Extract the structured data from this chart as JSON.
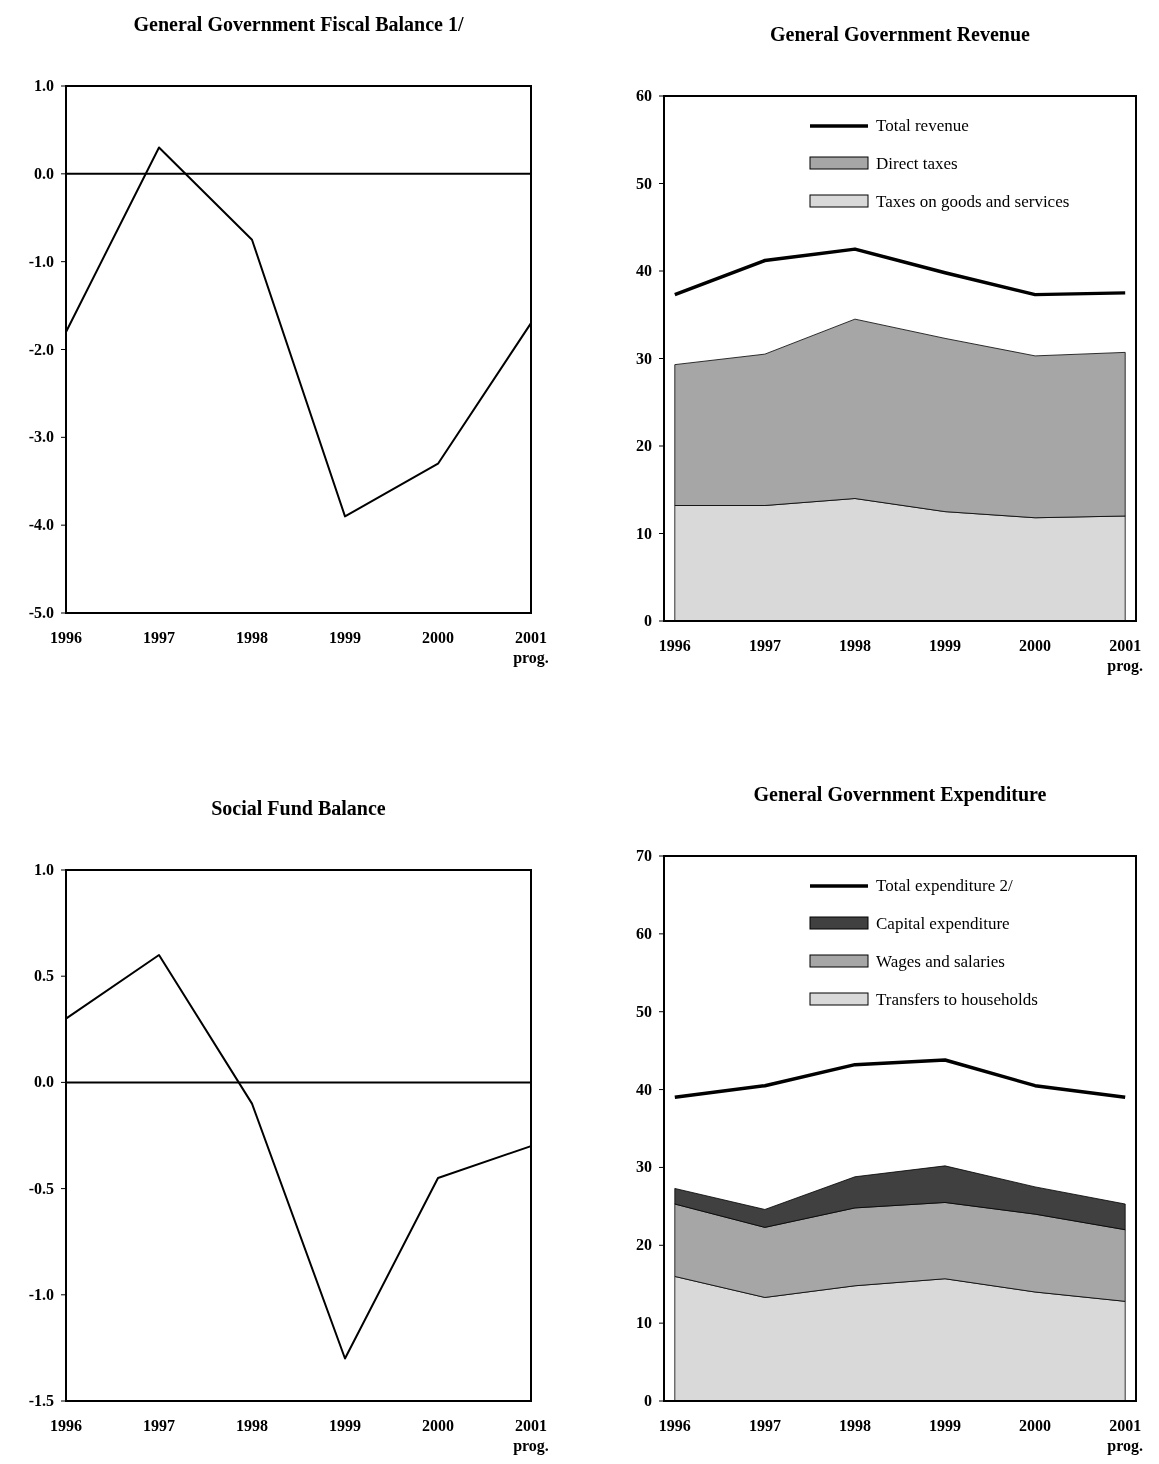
{
  "chart_data": [
    {
      "type": "line",
      "title": "General Government Fiscal Balance 1/",
      "categories": [
        "1996",
        "1997",
        "1998",
        "1999",
        "2000",
        "2001\nprog."
      ],
      "series": [
        {
          "color": "#000000",
          "values": [
            -1.8,
            0.3,
            -0.75,
            -3.9,
            -3.3,
            -1.7
          ]
        }
      ],
      "ylim": [
        -5,
        1
      ],
      "yticks": [
        {
          "value": -5,
          "label": "-5.0"
        },
        {
          "value": -4,
          "label": "-4.0"
        },
        {
          "value": -3,
          "label": "-3.0"
        },
        {
          "value": -2,
          "label": "-2.0"
        },
        {
          "value": -1,
          "label": "-1.0"
        },
        {
          "value": 0,
          "label": "0.0"
        },
        {
          "value": 1,
          "label": "1.0"
        }
      ],
      "ref_lines": [
        {
          "axis": "y",
          "value": 0,
          "label": null,
          "color": "#000000"
        }
      ],
      "grid": false,
      "legend": false
    },
    {
      "type": "area",
      "title": "General Government Revenue",
      "categories": [
        "1996",
        "1997",
        "1998",
        "1999",
        "2000",
        "2001\nprog."
      ],
      "stacked": true,
      "series": [
        {
          "name": "Taxes on goods and services",
          "color": "#d9d9d9",
          "values": [
            13.2,
            13.2,
            14,
            12.5,
            11.8,
            12
          ]
        },
        {
          "name": "Direct taxes",
          "color": "#a6a6a6",
          "values": [
            16.1,
            17.3,
            20.5,
            19.8,
            18.5,
            18.7
          ]
        },
        {
          "name": "Total revenue",
          "type": "line",
          "color": "#000000",
          "values": [
            37.3,
            41.2,
            42.5,
            39.8,
            37.3,
            37.5
          ]
        }
      ],
      "ylim": [
        0,
        60
      ],
      "yticks": [
        0,
        10,
        20,
        30,
        40,
        50,
        60
      ],
      "grid": false,
      "legend": "top"
    },
    {
      "type": "line",
      "title": "Social Fund Balance",
      "categories": [
        "1996",
        "1997",
        "1998",
        "1999",
        "2000",
        "2001\nprog."
      ],
      "series": [
        {
          "color": "#000000",
          "values": [
            0.3,
            0.6,
            -0.1,
            -1.3,
            -0.45,
            -0.3
          ]
        }
      ],
      "ylim": [
        -1.5,
        1
      ],
      "yticks": [
        {
          "value": -1.5,
          "label": "-1.5"
        },
        {
          "value": -1,
          "label": "-1.0"
        },
        {
          "value": -0.5,
          "label": "-0.5"
        },
        {
          "value": 0,
          "label": "0.0"
        },
        {
          "value": 0.5,
          "label": "0.5"
        },
        {
          "value": 1,
          "label": "1.0"
        }
      ],
      "ref_lines": [
        {
          "axis": "y",
          "value": 0,
          "label": null,
          "color": "#000000"
        }
      ],
      "grid": false,
      "legend": false
    },
    {
      "type": "area",
      "title": "General Government Expenditure",
      "categories": [
        "1996",
        "1997",
        "1998",
        "1999",
        "2000",
        "2001\nprog."
      ],
      "stacked": true,
      "series": [
        {
          "name": "Transfers to households",
          "color": "#d9d9d9",
          "values": [
            16,
            13.3,
            14.8,
            15.7,
            14,
            12.8
          ]
        },
        {
          "name": "Wages and salaries",
          "color": "#a6a6a6",
          "values": [
            9.3,
            9,
            10,
            9.8,
            10,
            9.2
          ]
        },
        {
          "name": "Capital expenditure",
          "color": "#404040",
          "values": [
            2,
            2.3,
            4,
            4.7,
            3.5,
            3.3
          ]
        },
        {
          "name": "Total expenditure 2/",
          "type": "line",
          "color": "#000000",
          "values": [
            39,
            40.5,
            43.2,
            43.8,
            40.5,
            39
          ]
        }
      ],
      "ylim": [
        0,
        70
      ],
      "yticks": [
        0,
        10,
        20,
        30,
        40,
        50,
        60,
        70
      ],
      "grid": false,
      "legend": "top"
    }
  ]
}
